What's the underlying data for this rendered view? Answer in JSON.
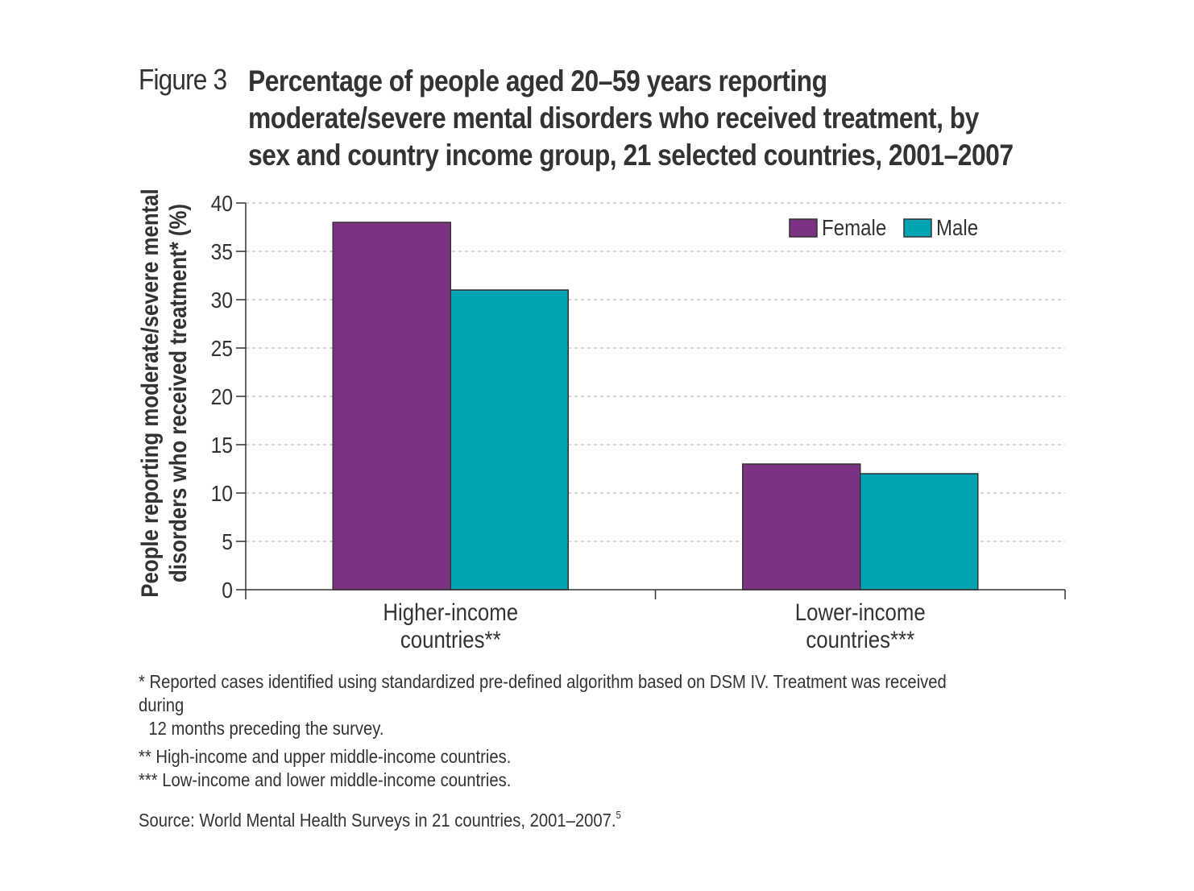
{
  "figure": {
    "label": "Figure 3",
    "title": "Percentage of people aged 20–59 years reporting\nmoderate/severe mental disorders who received treatment, by\nsex and country income group, 21 selected countries, 2001–2007"
  },
  "chart_data": {
    "type": "bar",
    "categories": [
      "Higher-income\ncountries**",
      "Lower-income\ncountries***"
    ],
    "series": [
      {
        "name": "Female",
        "values": [
          38,
          13
        ],
        "color": "#7b3280"
      },
      {
        "name": "Male",
        "values": [
          31,
          12
        ],
        "color": "#00a3b1"
      }
    ],
    "ylabel": "People reporting moderate/severe mental\ndisorders who received treatment* (%)",
    "ylim": [
      0,
      40
    ],
    "yticks": [
      0,
      5,
      10,
      15,
      20,
      25,
      30,
      35,
      40
    ],
    "grid": true,
    "legend_position": "top-right"
  },
  "notes": {
    "note1": "* Reported cases identified using standardized pre-defined algorithm based on DSM IV. Treatment was received during",
    "note1_cont": "12 months preceding the survey.",
    "note2": "** High-income and upper middle-income countries.",
    "note3": "*** Low-income and lower middle-income countries.",
    "source": "Source: World Mental Health Surveys in 21 countries, 2001–2007.",
    "source_ref": "5"
  }
}
